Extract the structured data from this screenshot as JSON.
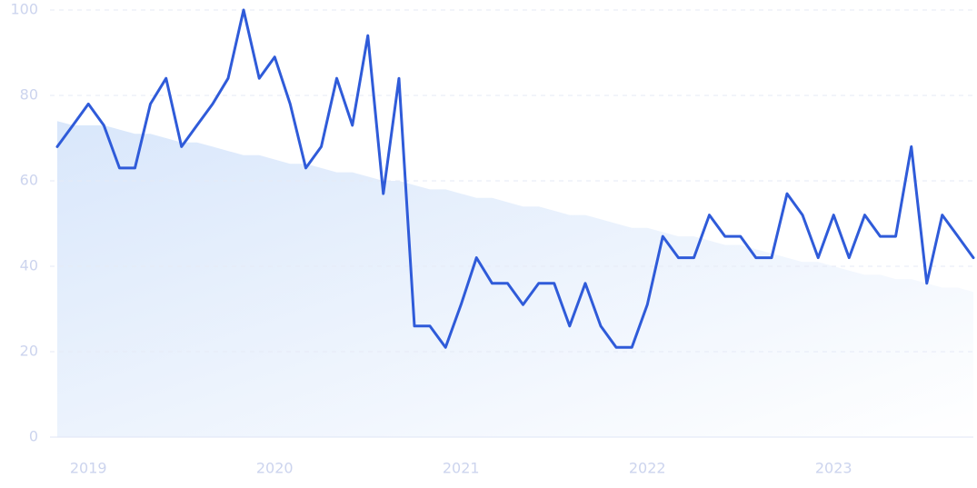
{
  "chart_data": {
    "type": "line",
    "x": [
      2018.833,
      2018.917,
      2019,
      2019.083,
      2019.167,
      2019.25,
      2019.333,
      2019.417,
      2019.5,
      2019.583,
      2019.667,
      2019.75,
      2019.833,
      2019.917,
      2020,
      2020.083,
      2020.167,
      2020.25,
      2020.333,
      2020.417,
      2020.5,
      2020.583,
      2020.667,
      2020.75,
      2020.833,
      2020.917,
      2021,
      2021.083,
      2021.167,
      2021.25,
      2021.333,
      2021.417,
      2021.5,
      2021.583,
      2021.667,
      2021.75,
      2021.833,
      2021.917,
      2022,
      2022.083,
      2022.167,
      2022.25,
      2022.333,
      2022.417,
      2022.5,
      2022.583,
      2022.667,
      2022.75,
      2022.833,
      2022.917,
      2023,
      2023.083,
      2023.167,
      2023.25,
      2023.333,
      2023.417,
      2023.5,
      2023.583,
      2023.667,
      2023.75
    ],
    "series": [
      {
        "type": "line",
        "color": "#2f5bd9",
        "values": [
          68,
          73,
          78,
          73,
          63,
          63,
          78,
          84,
          68,
          73,
          78,
          84,
          100,
          84,
          89,
          78,
          63,
          68,
          84,
          73,
          94,
          57,
          84,
          26,
          26,
          21,
          31,
          42,
          36,
          36,
          31,
          36,
          36,
          26,
          36,
          26,
          21,
          21,
          31,
          47,
          42,
          42,
          52,
          47,
          47,
          42,
          42,
          57,
          52,
          42,
          52,
          42,
          52,
          47,
          47,
          68,
          36,
          52,
          47,
          42
        ]
      },
      {
        "type": "area",
        "color": "#dbe8fb",
        "values": [
          74,
          73,
          73,
          73,
          72,
          71,
          71,
          70,
          69,
          69,
          68,
          67,
          66,
          66,
          65,
          64,
          64,
          63,
          62,
          62,
          61,
          60,
          60,
          59,
          58,
          58,
          57,
          56,
          56,
          55,
          54,
          54,
          53,
          52,
          52,
          51,
          50,
          49,
          49,
          48,
          47,
          47,
          46,
          45,
          45,
          44,
          43,
          42,
          41,
          41,
          40,
          39,
          38,
          38,
          37,
          37,
          36,
          35,
          35,
          34
        ]
      }
    ],
    "xlim": [
      2018.833,
      2023.75
    ],
    "xticks": [
      {
        "value": 2019,
        "label": "2019"
      },
      {
        "value": 2020,
        "label": "2020"
      },
      {
        "value": 2021,
        "label": "2021"
      },
      {
        "value": 2022,
        "label": "2022"
      },
      {
        "value": 2023,
        "label": "2023"
      }
    ],
    "ylim": [
      0,
      100
    ],
    "yticks": [
      0,
      20,
      40,
      60,
      80,
      100
    ],
    "grid": true
  }
}
